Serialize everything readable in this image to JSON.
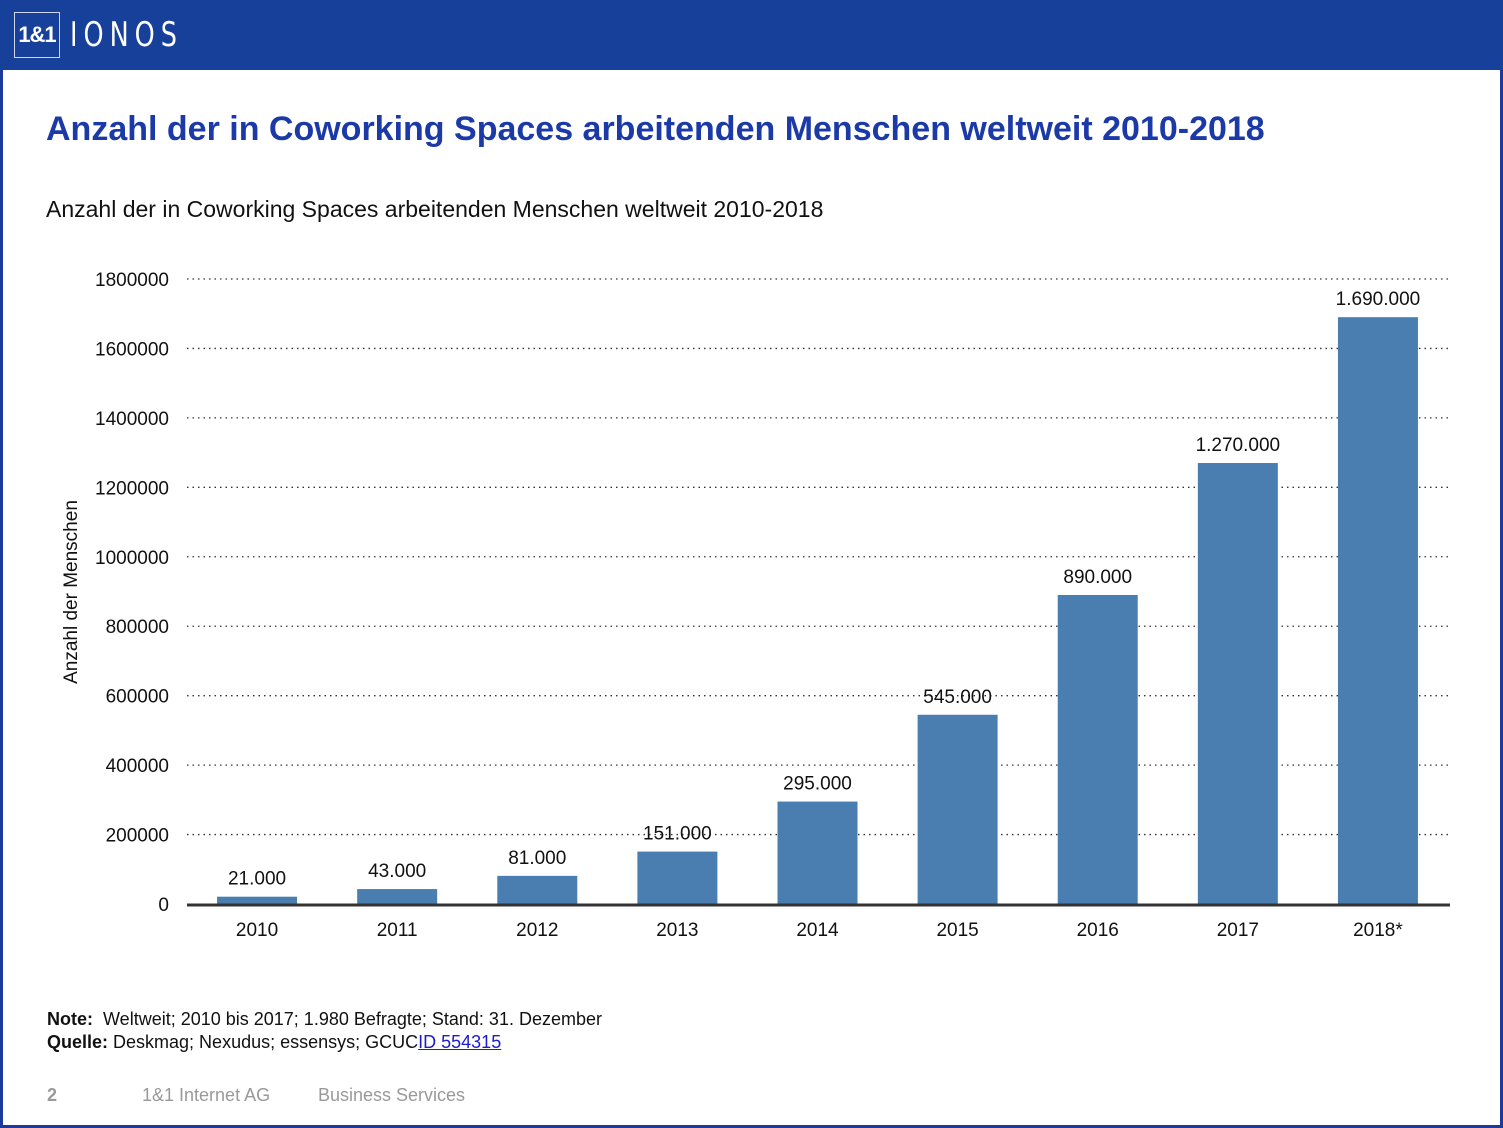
{
  "header": {
    "logo_box": "1&1",
    "logo_text": "IONOS"
  },
  "title": "Anzahl der in Coworking Spaces arbeitenden Menschen weltweit 2010-2018",
  "chart_data": {
    "type": "bar",
    "title": "Anzahl der in Coworking Spaces arbeitenden Menschen weltweit 2010-2018",
    "xlabel": "",
    "ylabel": "Anzahl der Menschen",
    "categories": [
      "2010",
      "2011",
      "2012",
      "2013",
      "2014",
      "2015",
      "2016",
      "2017",
      "2018*"
    ],
    "values": [
      21000,
      43000,
      81000,
      151000,
      295000,
      545000,
      890000,
      1270000,
      1690000
    ],
    "data_labels": [
      "21.000",
      "43.000",
      "81.000",
      "151.000",
      "295.000",
      "545.000",
      "890.000",
      "1.270.000",
      "1.690.000"
    ],
    "yticks": [
      0,
      200000,
      400000,
      600000,
      800000,
      1000000,
      1200000,
      1400000,
      1600000,
      1800000
    ],
    "ylim": [
      0,
      1800000
    ],
    "grid": "horizontal dotted",
    "bar_color": "#4a7eb0"
  },
  "notes": {
    "note_label": "Note:",
    "note_text": "Weltweit; 2010 bis 2017; 1.980 Befragte; Stand: 31. Dezember",
    "source_label": "Quelle:",
    "source_text": "Deskmag; Nexudus; essensys; GCUC",
    "source_link": "ID 554315"
  },
  "footer": {
    "page": "2",
    "company": "1&1 Internet AG",
    "division": "Business Services"
  }
}
